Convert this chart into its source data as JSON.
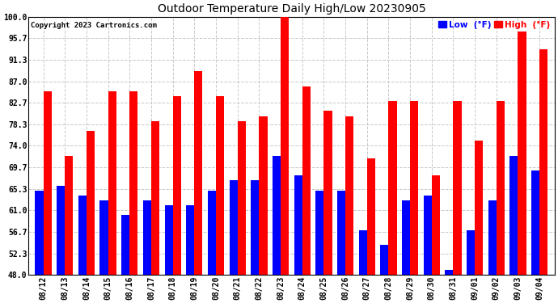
{
  "title": "Outdoor Temperature Daily High/Low 20230905",
  "copyright": "Copyright 2023 Cartronics.com",
  "legend_low": "Low",
  "legend_high": "High",
  "legend_unit": "(°F)",
  "dates": [
    "08/12",
    "08/13",
    "08/14",
    "08/15",
    "08/16",
    "08/17",
    "08/18",
    "08/19",
    "08/20",
    "08/21",
    "08/22",
    "08/23",
    "08/24",
    "08/25",
    "08/26",
    "08/27",
    "08/28",
    "08/29",
    "08/30",
    "08/31",
    "09/01",
    "09/02",
    "09/03",
    "09/04"
  ],
  "high": [
    85.0,
    72.0,
    77.0,
    85.0,
    85.0,
    79.0,
    84.0,
    89.0,
    84.0,
    79.0,
    80.0,
    100.0,
    86.0,
    81.0,
    80.0,
    71.5,
    83.0,
    83.0,
    68.0,
    83.0,
    75.0,
    83.0,
    97.0,
    93.5
  ],
  "low": [
    65.0,
    66.0,
    64.0,
    63.0,
    60.0,
    63.0,
    62.0,
    62.0,
    65.0,
    67.0,
    67.0,
    72.0,
    68.0,
    65.0,
    65.0,
    57.0,
    54.0,
    63.0,
    64.0,
    49.0,
    57.0,
    63.0,
    72.0,
    69.0
  ],
  "ylim": [
    48.0,
    100.0
  ],
  "yticks": [
    48.0,
    52.3,
    56.7,
    61.0,
    65.3,
    69.7,
    74.0,
    78.3,
    82.7,
    87.0,
    91.3,
    95.7,
    100.0
  ],
  "high_color": "#ff0000",
  "low_color": "#0000ff",
  "bg_color": "#ffffff",
  "grid_color": "#c8c8c8",
  "title_color": "#000000",
  "copyright_color": "#000000",
  "bar_width": 0.38,
  "figwidth": 6.9,
  "figheight": 3.75,
  "dpi": 100
}
